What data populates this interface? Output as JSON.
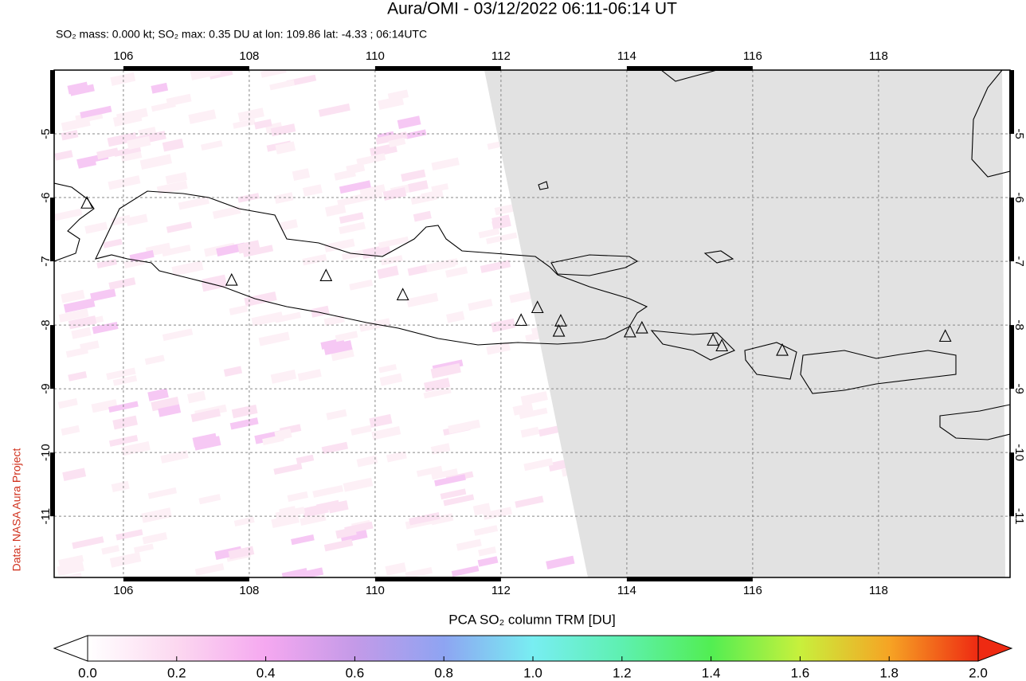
{
  "title": "Aura/OMI - 03/12/2022 06:11-06:14 UT",
  "subtitle": "SO₂ mass: 0.000 kt; SO₂ max: 0.35 DU at lon: 109.86 lat: -4.33 ; 06:14UTC",
  "credit": "Data: NASA Aura Project",
  "map": {
    "xlim": [
      104.9,
      120.09
    ],
    "ylim": [
      -11.96,
      -4.0
    ],
    "xticks": [
      106,
      108,
      110,
      112,
      114,
      116,
      118
    ],
    "yticks": [
      -5,
      -6,
      -7,
      -8,
      -9,
      -10,
      -11
    ],
    "grid": true,
    "volcanoes": [
      {
        "lon": 105.42,
        "lat": -6.09
      },
      {
        "lon": 107.72,
        "lat": -7.3
      },
      {
        "lon": 109.22,
        "lat": -7.23
      },
      {
        "lon": 110.44,
        "lat": -7.53
      },
      {
        "lon": 112.32,
        "lat": -7.93
      },
      {
        "lon": 112.58,
        "lat": -7.73
      },
      {
        "lon": 112.95,
        "lat": -7.94
      },
      {
        "lon": 112.92,
        "lat": -8.1
      },
      {
        "lon": 114.05,
        "lat": -8.11
      },
      {
        "lon": 114.24,
        "lat": -8.05
      },
      {
        "lon": 115.37,
        "lat": -8.24
      },
      {
        "lon": 115.51,
        "lat": -8.33
      },
      {
        "lon": 116.47,
        "lat": -8.4
      },
      {
        "lon": 119.06,
        "lat": -8.18
      }
    ]
  },
  "colorbar": {
    "label": "PCA SO₂ column TRM [DU]",
    "range": [
      0,
      2
    ],
    "ticks": [
      {
        "value": 0,
        "label": "0.0"
      },
      0.2,
      0.4,
      0.6,
      0.8,
      {
        "value": 1,
        "label": "1.0"
      },
      1.2,
      1.4,
      1.6,
      1.8,
      {
        "value": 2,
        "label": "2.0"
      }
    ]
  }
}
